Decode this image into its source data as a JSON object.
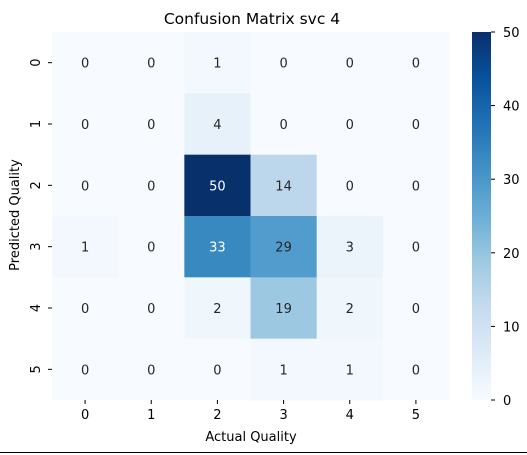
{
  "chart_data": {
    "type": "heatmap",
    "title": "Confusion Matrix svc 4",
    "xlabel": "Actual Quality",
    "ylabel": "Predicted Quality",
    "x_categories": [
      "0",
      "1",
      "2",
      "3",
      "4",
      "5"
    ],
    "y_categories": [
      "0",
      "1",
      "2",
      "3",
      "4",
      "5"
    ],
    "values": [
      [
        0,
        0,
        1,
        0,
        0,
        0
      ],
      [
        0,
        0,
        4,
        0,
        0,
        0
      ],
      [
        0,
        0,
        50,
        14,
        0,
        0
      ],
      [
        1,
        0,
        33,
        29,
        3,
        0
      ],
      [
        0,
        0,
        2,
        19,
        2,
        0
      ],
      [
        0,
        0,
        0,
        1,
        1,
        0
      ]
    ],
    "colormap": "Blues",
    "color_range": [
      0,
      50
    ],
    "colorbar_ticks": [
      0,
      10,
      20,
      30,
      40,
      50
    ],
    "annotations": true
  }
}
